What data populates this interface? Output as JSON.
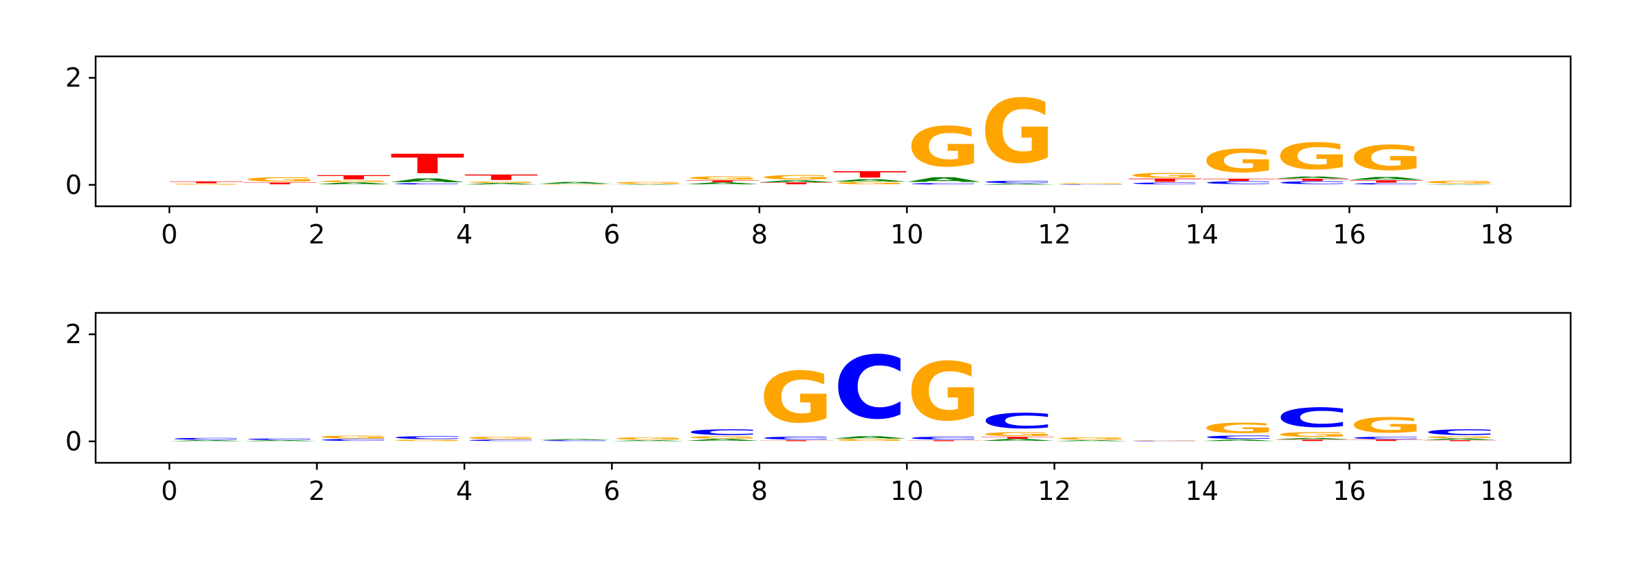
{
  "chart_data": [
    {
      "type": "sequence-logo",
      "x_ticks": [
        "0",
        "2",
        "4",
        "6",
        "8",
        "10",
        "12",
        "14",
        "16",
        "18"
      ],
      "xlim": [
        -1,
        19
      ],
      "y_ticks": [
        "0",
        "2"
      ],
      "ylim": [
        -0.4,
        2.4
      ],
      "grid": false,
      "colors": {
        "A": "#008000",
        "C": "#0000ff",
        "G": "#ffa500",
        "T": "#ff0000"
      },
      "positions": [
        {
          "x": 0.5,
          "letters": [
            [
              "G",
              0.02
            ],
            [
              "T",
              0.04
            ]
          ]
        },
        {
          "x": 1.5,
          "letters": [
            [
              "T",
              0.04
            ],
            [
              "G",
              0.09
            ]
          ]
        },
        {
          "x": 2.5,
          "letters": [
            [
              "A",
              0.04
            ],
            [
              "G",
              0.04
            ],
            [
              "T",
              0.09
            ]
          ]
        },
        {
          "x": 3.5,
          "letters": [
            [
              "C",
              0.03
            ],
            [
              "A",
              0.08
            ],
            [
              "T",
              0.42
            ]
          ]
        },
        {
          "x": 4.5,
          "letters": [
            [
              "A",
              0.03
            ],
            [
              "G",
              0.03
            ],
            [
              "T",
              0.12
            ]
          ]
        },
        {
          "x": 5.5,
          "letters": [
            [
              "G",
              0.01
            ],
            [
              "A",
              0.04
            ]
          ]
        },
        {
          "x": 6.5,
          "letters": [
            [
              "A",
              0.01
            ],
            [
              "G",
              0.04
            ]
          ]
        },
        {
          "x": 7.5,
          "letters": [
            [
              "A",
              0.04
            ],
            [
              "T",
              0.04
            ],
            [
              "G",
              0.07
            ]
          ]
        },
        {
          "x": 8.5,
          "letters": [
            [
              "T",
              0.04
            ],
            [
              "A",
              0.04
            ],
            [
              "G",
              0.09
            ]
          ]
        },
        {
          "x": 9.5,
          "letters": [
            [
              "G",
              0.05
            ],
            [
              "A",
              0.05
            ],
            [
              "T",
              0.14
            ]
          ]
        },
        {
          "x": 10.5,
          "letters": [
            [
              "C",
              0.03
            ],
            [
              "A",
              0.1
            ],
            [
              "G",
              0.86
            ]
          ]
        },
        {
          "x": 11.5,
          "letters": [
            [
              "A",
              0.02
            ],
            [
              "C",
              0.05
            ],
            [
              "G",
              1.38
            ]
          ]
        },
        {
          "x": 12.5,
          "letters": [
            [
              "C",
              0.01
            ],
            [
              "G",
              0.02
            ]
          ]
        },
        {
          "x": 13.5,
          "letters": [
            [
              "C",
              0.04
            ],
            [
              "T",
              0.07
            ],
            [
              "G",
              0.1
            ]
          ]
        },
        {
          "x": 14.5,
          "letters": [
            [
              "C",
              0.06
            ],
            [
              "T",
              0.05
            ],
            [
              "G",
              0.5
            ]
          ]
        },
        {
          "x": 15.5,
          "letters": [
            [
              "C",
              0.06
            ],
            [
              "T",
              0.05
            ],
            [
              "A",
              0.04
            ],
            [
              "G",
              0.57
            ]
          ]
        },
        {
          "x": 16.5,
          "letters": [
            [
              "C",
              0.03
            ],
            [
              "T",
              0.05
            ],
            [
              "A",
              0.06
            ],
            [
              "G",
              0.54
            ]
          ]
        },
        {
          "x": 17.5,
          "letters": [
            [
              "A",
              0.01
            ],
            [
              "G",
              0.06
            ]
          ]
        }
      ]
    },
    {
      "type": "sequence-logo",
      "x_ticks": [
        "0",
        "2",
        "4",
        "6",
        "8",
        "10",
        "12",
        "14",
        "16",
        "18"
      ],
      "xlim": [
        -1,
        19
      ],
      "y_ticks": [
        "0",
        "2"
      ],
      "ylim": [
        -0.4,
        2.4
      ],
      "grid": false,
      "colors": {
        "A": "#008000",
        "C": "#0000ff",
        "G": "#ffa500",
        "T": "#ff0000"
      },
      "positions": [
        {
          "x": 0.5,
          "letters": [
            [
              "A",
              0.02
            ],
            [
              "C",
              0.04
            ]
          ]
        },
        {
          "x": 1.5,
          "letters": [
            [
              "A",
              0.02
            ],
            [
              "C",
              0.03
            ]
          ]
        },
        {
          "x": 2.5,
          "letters": [
            [
              "C",
              0.04
            ],
            [
              "G",
              0.06
            ]
          ]
        },
        {
          "x": 3.5,
          "letters": [
            [
              "G",
              0.03
            ],
            [
              "C",
              0.06
            ]
          ]
        },
        {
          "x": 4.5,
          "letters": [
            [
              "C",
              0.03
            ],
            [
              "G",
              0.05
            ]
          ]
        },
        {
          "x": 5.5,
          "letters": [
            [
              "C",
              0.02
            ],
            [
              "A",
              0.02
            ]
          ]
        },
        {
          "x": 6.5,
          "letters": [
            [
              "A",
              0.02
            ],
            [
              "G",
              0.05
            ]
          ]
        },
        {
          "x": 7.5,
          "letters": [
            [
              "A",
              0.04
            ],
            [
              "G",
              0.05
            ],
            [
              "C",
              0.12
            ]
          ]
        },
        {
          "x": 8.5,
          "letters": [
            [
              "T",
              0.02
            ],
            [
              "C",
              0.06
            ],
            [
              "G",
              1.1
            ]
          ]
        },
        {
          "x": 9.5,
          "letters": [
            [
              "G",
              0.04
            ],
            [
              "A",
              0.05
            ],
            [
              "C",
              1.36
            ]
          ]
        },
        {
          "x": 10.5,
          "letters": [
            [
              "T",
              0.02
            ],
            [
              "C",
              0.06
            ],
            [
              "G",
              1.26
            ]
          ]
        },
        {
          "x": 11.5,
          "letters": [
            [
              "A",
              0.04
            ],
            [
              "T",
              0.04
            ],
            [
              "G",
              0.08
            ],
            [
              "C",
              0.33
            ]
          ]
        },
        {
          "x": 12.5,
          "letters": [
            [
              "A",
              0.02
            ],
            [
              "G",
              0.05
            ]
          ]
        },
        {
          "x": 13.5,
          "letters": [
            [
              "C",
              0.01
            ],
            [
              "G",
              0.01
            ]
          ]
        },
        {
          "x": 14.5,
          "letters": [
            [
              "A",
              0.03
            ],
            [
              "C",
              0.07
            ],
            [
              "G",
              0.22
            ]
          ]
        },
        {
          "x": 15.5,
          "letters": [
            [
              "T",
              0.03
            ],
            [
              "A",
              0.03
            ],
            [
              "G",
              0.1
            ],
            [
              "C",
              0.42
            ]
          ]
        },
        {
          "x": 16.5,
          "letters": [
            [
              "T",
              0.03
            ],
            [
              "C",
              0.05
            ],
            [
              "G",
              0.33
            ]
          ]
        },
        {
          "x": 17.5,
          "letters": [
            [
              "T",
              0.02
            ],
            [
              "A",
              0.03
            ],
            [
              "G",
              0.04
            ],
            [
              "C",
              0.12
            ]
          ]
        }
      ]
    }
  ]
}
